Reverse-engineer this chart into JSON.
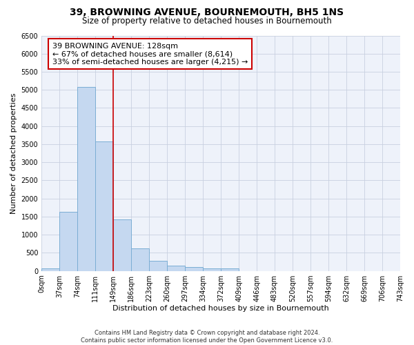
{
  "title": "39, BROWNING AVENUE, BOURNEMOUTH, BH5 1NS",
  "subtitle": "Size of property relative to detached houses in Bournemouth",
  "xlabel": "Distribution of detached houses by size in Bournemouth",
  "ylabel": "Number of detached properties",
  "footer_line1": "Contains HM Land Registry data © Crown copyright and database right 2024.",
  "footer_line2": "Contains public sector information licensed under the Open Government Licence v3.0.",
  "bar_values": [
    75,
    1625,
    5075,
    3575,
    1425,
    625,
    285,
    145,
    105,
    70,
    60,
    0,
    0,
    0,
    0,
    0,
    0,
    0,
    0,
    0
  ],
  "categories": [
    "0sqm",
    "37sqm",
    "74sqm",
    "111sqm",
    "149sqm",
    "186sqm",
    "223sqm",
    "260sqm",
    "297sqm",
    "334sqm",
    "372sqm",
    "409sqm",
    "446sqm",
    "483sqm",
    "520sqm",
    "557sqm",
    "594sqm",
    "632sqm",
    "669sqm",
    "706sqm",
    "743sqm"
  ],
  "bar_color": "#c5d8f0",
  "bar_edge_color": "#7aadd4",
  "vline_x": 3.5,
  "vline_color": "#cc0000",
  "annotation_line1": "39 BROWNING AVENUE: 128sqm",
  "annotation_line2": "← 67% of detached houses are smaller (8,614)",
  "annotation_line3": "33% of semi-detached houses are larger (4,215) →",
  "annotation_box_color": "#ffffff",
  "annotation_box_edge": "#cc0000",
  "ylim": [
    0,
    6500
  ],
  "yticks": [
    0,
    500,
    1000,
    1500,
    2000,
    2500,
    3000,
    3500,
    4000,
    4500,
    5000,
    5500,
    6000,
    6500
  ],
  "grid_color": "#c8d0e0",
  "bg_color": "#eef2fa",
  "fig_bg_color": "#ffffff",
  "title_fontsize": 10,
  "subtitle_fontsize": 8.5,
  "tick_fontsize": 7,
  "ylabel_fontsize": 8,
  "xlabel_fontsize": 8,
  "annotation_fontsize": 8,
  "footer_fontsize": 6
}
